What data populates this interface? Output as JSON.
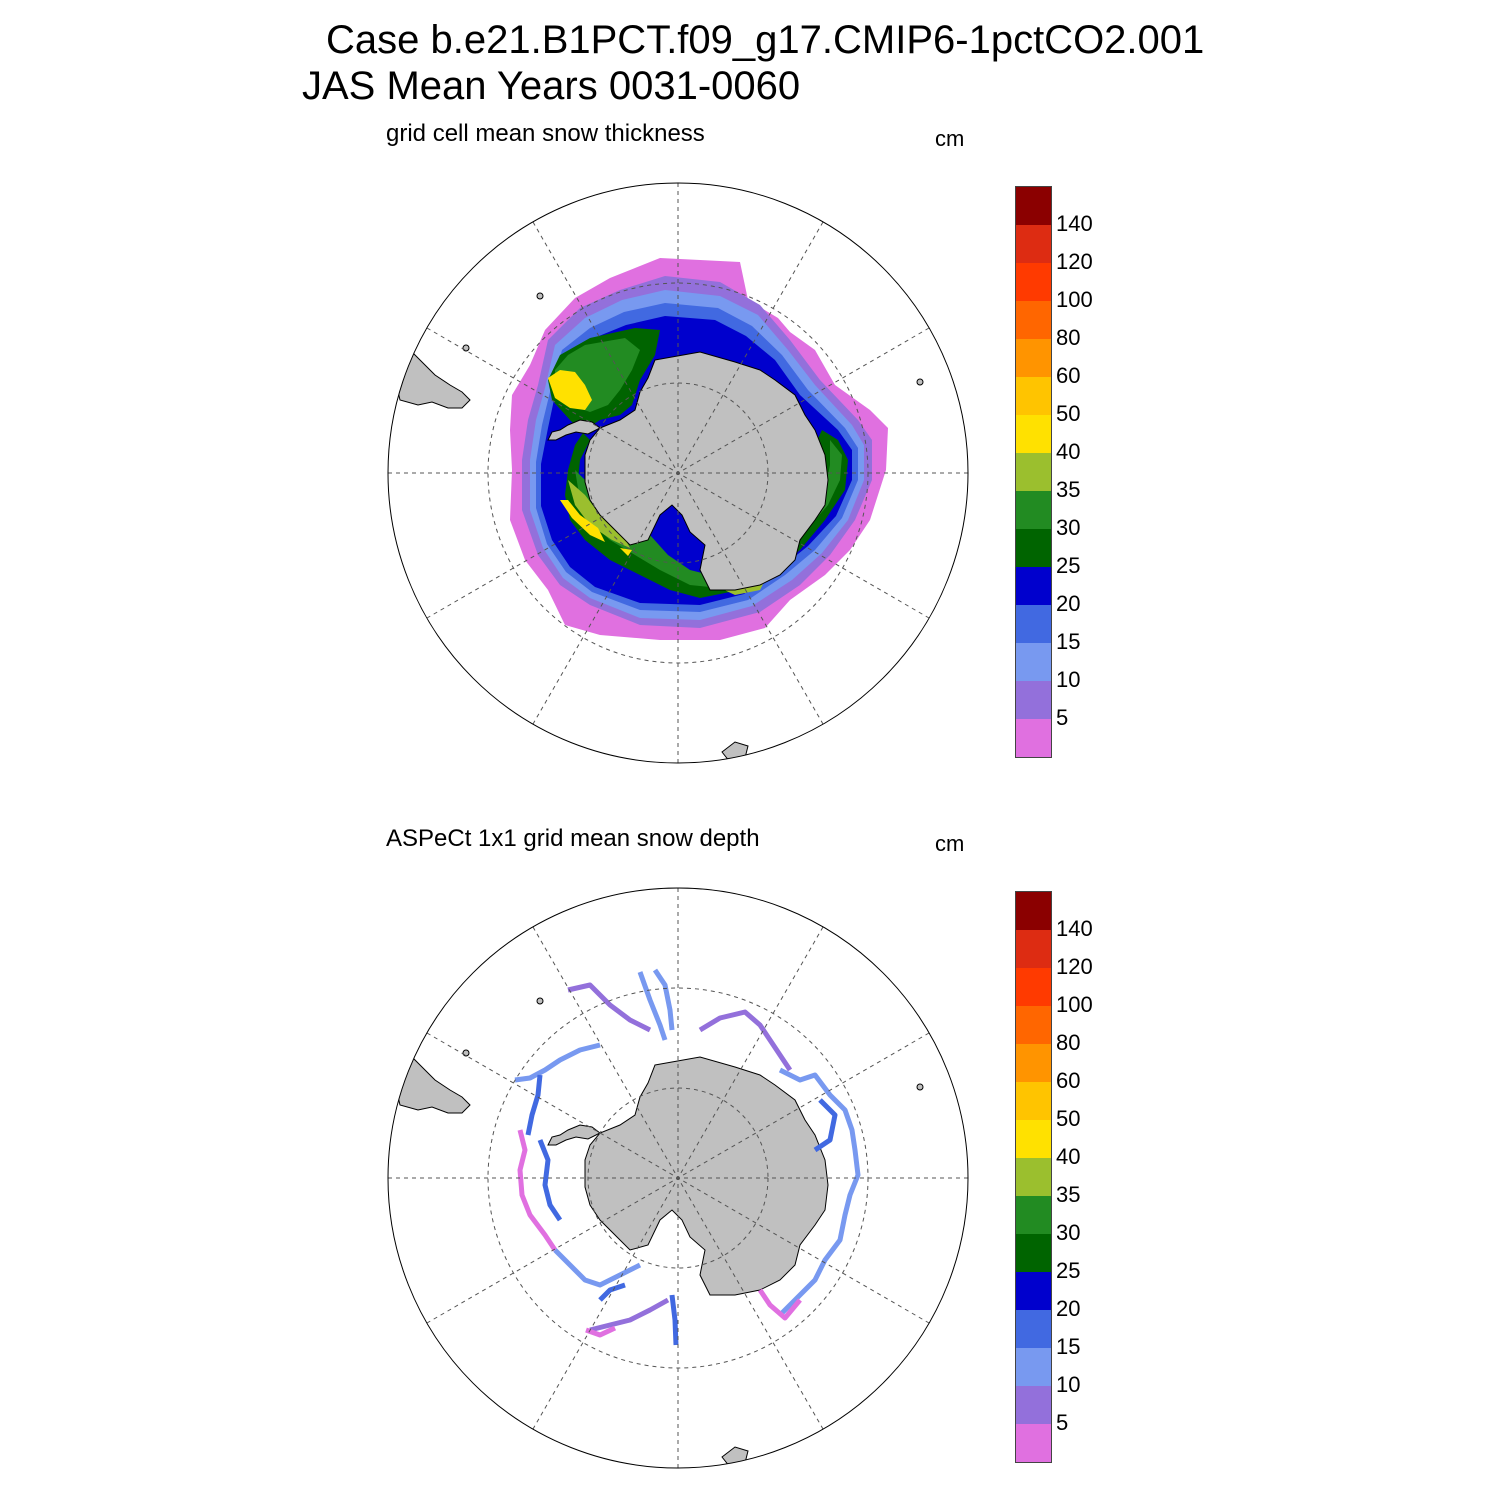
{
  "header": {
    "line1": "Case b.e21.B1PCT.f09_g17.CMIP6-1pctCO2.001",
    "line2": "JAS Mean   Years 0031-0060"
  },
  "panels": [
    {
      "title": "grid cell mean snow thickness",
      "units": "cm"
    },
    {
      "title": "ASPeCt 1x1 grid mean snow depth",
      "units": "cm"
    }
  ],
  "colorbar": {
    "labels": [
      "140",
      "120",
      "100",
      "80",
      "60",
      "50",
      "40",
      "35",
      "30",
      "25",
      "20",
      "15",
      "10",
      "5"
    ],
    "colors": [
      "#8b0000",
      "#dd2c12",
      "#ff3a00",
      "#ff6600",
      "#ff9400",
      "#ffc400",
      "#ffe100",
      "#9bbf2e",
      "#228b22",
      "#006400",
      "#0000cd",
      "#4169e1",
      "#7899f0",
      "#9370db",
      "#e070e0"
    ]
  },
  "map_colors": {
    "land": "#c0c0c0",
    "ice_outer": "#e070e0",
    "ice_10": "#9370db",
    "ice_15": "#7899f0",
    "ice_20": "#4169e1",
    "ice_25": "#0000cd",
    "ice_30": "#006400",
    "ice_35": "#228b22",
    "ice_40": "#9bbf2e",
    "ice_50": "#ffe100"
  }
}
